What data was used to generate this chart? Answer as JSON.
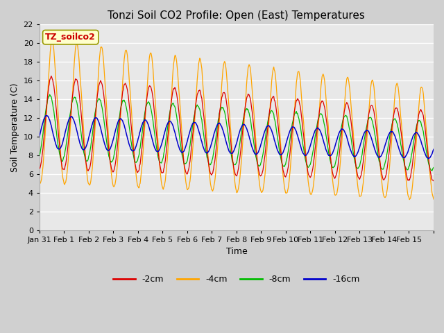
{
  "title": "Tonzi Soil CO2 Profile: Open (East) Temperatures",
  "xlabel": "Time",
  "ylabel": "Soil Temperature (C)",
  "annotation": "TZ_soilco2",
  "ylim": [
    0,
    22
  ],
  "colors": {
    "-2cm": "#dd0000",
    "-4cm": "#ffa500",
    "-8cm": "#00bb00",
    "-16cm": "#0000cc"
  },
  "legend_labels": [
    "-2cm",
    "-4cm",
    "-8cm",
    "-16cm"
  ],
  "fig_facecolor": "#d0d0d0",
  "plot_facecolor": "#e8e8e8",
  "x_tick_days": [
    30,
    31,
    32,
    33,
    34,
    35,
    36,
    37,
    38,
    39,
    40,
    41,
    42,
    43,
    44,
    45,
    46
  ],
  "x_tick_labels": [
    "Jan 31",
    "Feb 1",
    "Feb 2",
    "Feb 3",
    "Feb 4",
    "Feb 5",
    "Feb 6",
    "Feb 7",
    "Feb 8",
    "Feb 9",
    "Feb 10",
    "Feb 11",
    "Feb 12",
    "Feb 13",
    "Feb 14",
    "Feb 15",
    ""
  ],
  "yticks": [
    0,
    2,
    4,
    6,
    8,
    10,
    12,
    14,
    16,
    18,
    20,
    22
  ],
  "title_fontsize": 11,
  "tick_fontsize": 8,
  "label_fontsize": 9
}
